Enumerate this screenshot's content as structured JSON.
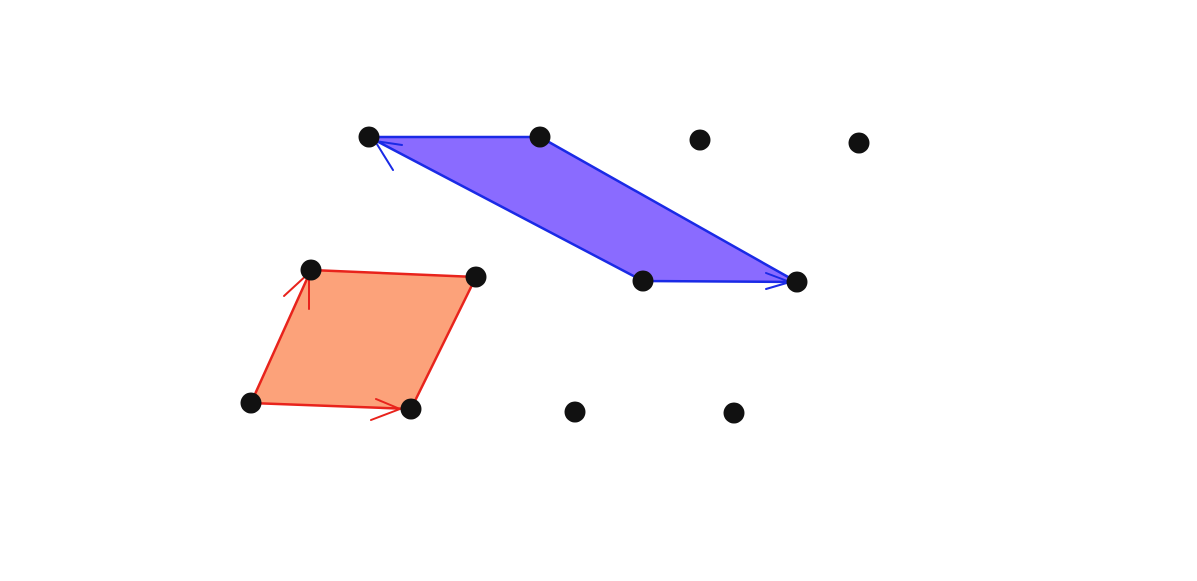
{
  "diagram": {
    "colors": {
      "background": "#ffffff",
      "red_fill": "#fca27a",
      "red_stroke": "#e8231c",
      "blue_fill": "#8a6bff",
      "blue_stroke": "#1a2ae6",
      "dot": "#111111"
    },
    "lattice_points": [
      {
        "id": "p1",
        "row": "top"
      },
      {
        "id": "p2",
        "row": "top"
      },
      {
        "id": "p3",
        "row": "top"
      },
      {
        "id": "p4",
        "row": "top"
      },
      {
        "id": "p5",
        "row": "middle"
      },
      {
        "id": "p6",
        "row": "middle"
      },
      {
        "id": "p7",
        "row": "middle"
      },
      {
        "id": "p8",
        "row": "middle"
      },
      {
        "id": "p9",
        "row": "bottom"
      },
      {
        "id": "p10",
        "row": "bottom"
      },
      {
        "id": "p11",
        "row": "bottom"
      },
      {
        "id": "p12",
        "row": "bottom"
      }
    ],
    "parallelograms": [
      {
        "name": "red-parallelogram",
        "vertices": [
          "p9",
          "p10",
          "p6",
          "p5"
        ]
      },
      {
        "name": "blue-parallelogram",
        "vertices": [
          "p1",
          "p2",
          "p8",
          "p7"
        ]
      }
    ],
    "vectors": [
      {
        "name": "red-vector-horizontal",
        "from": "p9",
        "to": "p10"
      },
      {
        "name": "red-vector-slanted",
        "from": "p9",
        "to": "p5"
      },
      {
        "name": "blue-vector-horizontal",
        "from": "p7",
        "to": "p8"
      },
      {
        "name": "blue-vector-slanted",
        "from": "p7",
        "to": "p1"
      }
    ]
  }
}
